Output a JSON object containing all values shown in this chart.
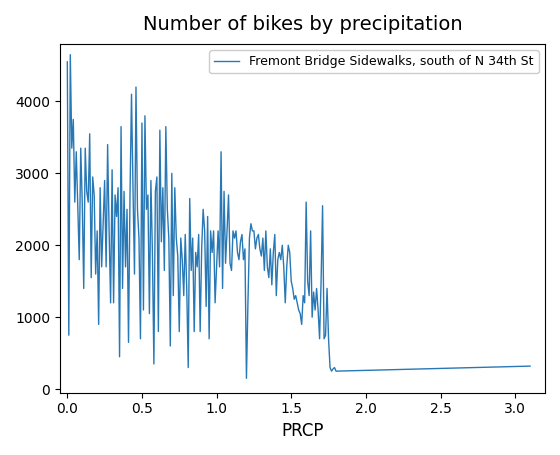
{
  "title": "Number of bikes by precipitation",
  "xlabel": "PRCP",
  "ylabel": "",
  "legend_label": "Fremont Bridge Sidewalks, south of N 34th St",
  "line_color": "#2878b5",
  "figsize": [
    5.6,
    4.55
  ],
  "dpi": 100,
  "xlim": [
    -0.05,
    3.2
  ],
  "ylim": [
    -50,
    4800
  ],
  "y": [
    4550,
    750,
    4650,
    3350,
    3750,
    2600,
    3300,
    2550,
    1800,
    3350,
    2600,
    1400,
    3350,
    2750,
    2600,
    3550,
    1550,
    2950,
    2700,
    1600,
    2200,
    900,
    2800,
    1700,
    2300,
    2900,
    1700,
    3400,
    2200,
    1200,
    3050,
    1200,
    2700,
    2400,
    2800,
    450,
    3650,
    1400,
    2750,
    1700,
    2500,
    650,
    2700,
    4100,
    2800,
    1600,
    4200,
    2500,
    2100,
    700,
    3700,
    1100,
    3800,
    2500,
    2700,
    1050,
    2900,
    1900,
    350,
    2750,
    2950,
    800,
    3600,
    2050,
    2800,
    1650,
    3650,
    2500,
    2100,
    600,
    3000,
    1300,
    2800,
    2100,
    1850,
    800,
    2100,
    1800,
    1300,
    2150,
    1400,
    300,
    2650,
    1650,
    2100,
    800,
    1900,
    1700,
    2150,
    800,
    1950,
    2500,
    2200,
    1150,
    2400,
    700,
    2200,
    1900,
    2200,
    1200,
    1700,
    2200,
    1700,
    3300,
    1400,
    2750,
    1750,
    2200,
    2700,
    1750,
    1650,
    2200,
    2100,
    2200,
    1900,
    1800,
    2050,
    2150,
    1800,
    1950,
    150,
    1200,
    2100,
    2300,
    2200,
    2200,
    1950,
    2100,
    2150,
    1950,
    1850,
    2100,
    1650,
    2200,
    1700,
    1550,
    1950,
    1450,
    1900,
    2150,
    1300,
    1800,
    1900,
    1800,
    2000,
    1700,
    1200,
    1700,
    2000,
    1900,
    1500,
    1400,
    1250,
    1300,
    1200,
    1100,
    1050,
    900,
    1300,
    1200,
    2600,
    1500,
    1300,
    2200,
    1000,
    1350,
    1100,
    1400,
    1100,
    700,
    1500,
    2550,
    700,
    750,
    1400,
    700,
    300,
    250,
    280,
    300,
    250,
    320
  ]
}
